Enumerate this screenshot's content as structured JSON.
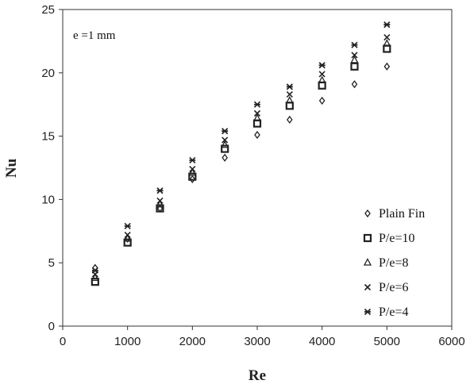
{
  "chart_data": {
    "type": "scatter",
    "title": "",
    "xlabel": "Re",
    "ylabel": "Nu",
    "xlim": [
      0,
      6000
    ],
    "ylim": [
      0,
      25
    ],
    "xticks": [
      0,
      1000,
      2000,
      3000,
      4000,
      5000,
      6000
    ],
    "yticks": [
      0,
      5,
      10,
      15,
      20,
      25
    ],
    "grid": false,
    "legend_position": "bottom-right",
    "annotation": "e =1 mm",
    "x": [
      500,
      1000,
      1500,
      2000,
      2500,
      3000,
      3500,
      4000,
      4500,
      5000
    ],
    "series": [
      {
        "name": "Plain Fin",
        "marker": "diamond",
        "values": [
          4.6,
          6.9,
          9.3,
          11.6,
          13.3,
          15.1,
          16.3,
          17.8,
          19.1,
          20.5
        ]
      },
      {
        "name": "P/e=10",
        "marker": "square",
        "values": [
          3.5,
          6.6,
          9.3,
          11.8,
          14.0,
          16.0,
          17.4,
          19.0,
          20.5,
          21.9
        ]
      },
      {
        "name": "P/e=8",
        "marker": "triangle",
        "values": [
          3.8,
          6.9,
          9.6,
          12.1,
          14.3,
          16.4,
          17.8,
          19.4,
          21.0,
          22.3
        ]
      },
      {
        "name": "P/e=6",
        "marker": "x",
        "values": [
          4.1,
          7.2,
          9.9,
          12.4,
          14.7,
          16.8,
          18.3,
          19.9,
          21.4,
          22.8
        ]
      },
      {
        "name": "P/e=4",
        "marker": "star",
        "values": [
          4.4,
          7.9,
          10.7,
          13.1,
          15.4,
          17.5,
          18.9,
          20.6,
          22.2,
          23.8
        ]
      }
    ]
  }
}
